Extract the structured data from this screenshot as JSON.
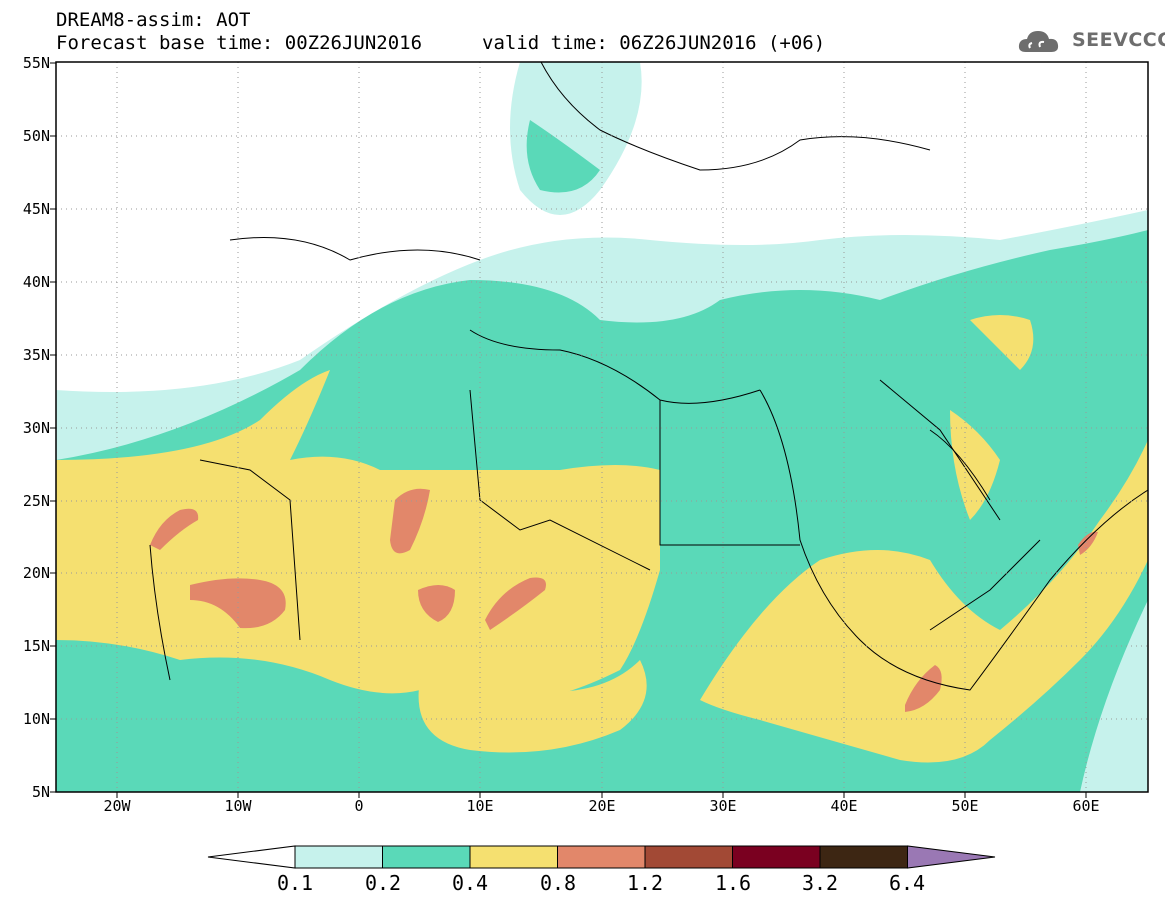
{
  "header": {
    "title_line1": "DREAM8-assim: AOT",
    "title_line2": "Forecast base time: 00Z26JUN2016",
    "valid_time": "valid time: 06Z26JUN2016 (+06)",
    "logo_text": "SEEVCCC"
  },
  "map": {
    "extent": {
      "lon_min": -25,
      "lon_max": 65,
      "lat_min": 5,
      "lat_max": 55
    },
    "lat_labels": [
      "55N",
      "50N",
      "45N",
      "40N",
      "35N",
      "30N",
      "25N",
      "20N",
      "15N",
      "10N",
      "5N"
    ],
    "lon_labels": [
      "20W",
      "10W",
      "0",
      "10E",
      "20E",
      "30E",
      "40E",
      "50E",
      "60E"
    ],
    "colors": {
      "c01": "#c6f2ec",
      "c02": "#5ad9b8",
      "c04": "#f5e070",
      "c08": "#e2876a",
      "c12": "#a24935",
      "c16": "#7a0020",
      "c32": "#3d2613",
      "c64": "#9a78b4"
    }
  },
  "colorbar": {
    "labels": [
      "0.1",
      "0.2",
      "0.4",
      "0.8",
      "1.2",
      "1.6",
      "3.2",
      "6.4"
    ],
    "colors": [
      "#c6f2ec",
      "#5ad9b8",
      "#f5e070",
      "#e2876a",
      "#a24935",
      "#7a0020",
      "#3d2613"
    ],
    "over_color": "#9a78b4",
    "under_color": "#ffffff"
  }
}
